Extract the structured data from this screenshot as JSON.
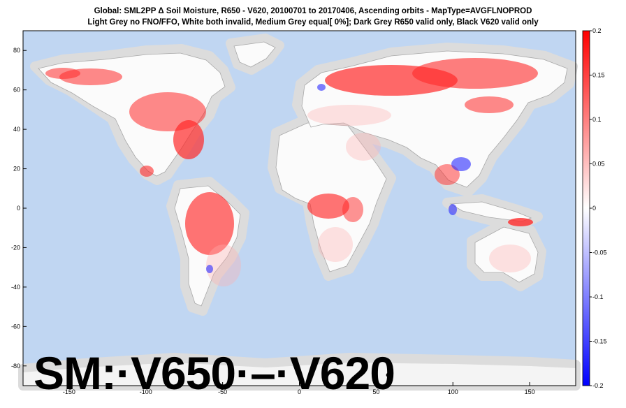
{
  "title": {
    "line1": "Global: SML2PP Δ Soil Moisture, R650 - V620, 20100701 to 20170406, Ascending orbits - MapType=AVGFLNOPROD",
    "line2": "Light Grey no FNO/FFO, White both invalid, Medium Grey equal[ 0%]; Dark Grey R650 valid only, Black V620 valid only"
  },
  "map": {
    "x_ticks": [
      "-150",
      "-100",
      "-50",
      "0",
      "50",
      "100",
      "150"
    ],
    "y_ticks": [
      "80",
      "60",
      "40",
      "20",
      "0",
      "-20",
      "-40",
      "-60",
      "-80"
    ],
    "colors": {
      "ocean": "#c0d6f2",
      "land": "#fafafa",
      "coast_buffer": "#dcdcdc",
      "positive": "#ff0000",
      "negative": "#0000ff"
    }
  },
  "colorbar": {
    "ticks": [
      "0.2",
      "0.15",
      "0.1",
      "0.05",
      "0",
      "-0.05",
      "-0.1",
      "-0.15",
      "-0.2"
    ],
    "min": -0.2,
    "max": 0.2
  },
  "overlay": {
    "label": "SM:·V650·–·V620",
    "pilcrow": "¶"
  }
}
